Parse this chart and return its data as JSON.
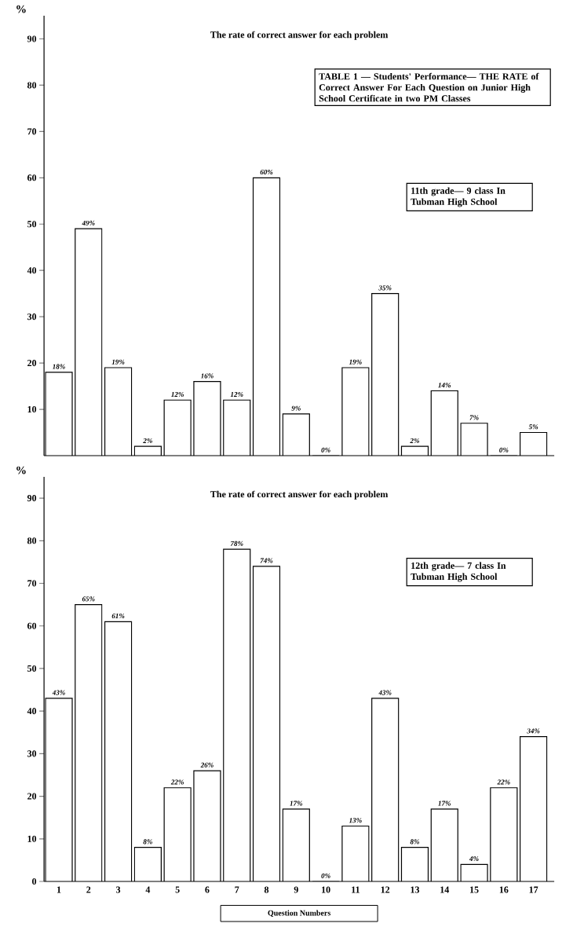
{
  "chart_data": [
    {
      "type": "bar",
      "title": "The rate of correct answer for each problem",
      "ylabel": "%",
      "categories": [
        "1",
        "2",
        "3",
        "4",
        "5",
        "6",
        "7",
        "8",
        "9",
        "10",
        "11",
        "12",
        "13",
        "14",
        "15",
        "16",
        "17"
      ],
      "values": [
        18,
        49,
        19,
        2,
        12,
        16,
        12,
        60,
        9,
        0,
        19,
        35,
        2,
        14,
        7,
        0,
        5
      ],
      "value_labels": [
        "18%",
        "49%",
        "19%",
        "2%",
        "12%",
        "16%",
        "12%",
        "60%",
        "9%",
        "0%",
        "19%",
        "35%",
        "2%",
        "14%",
        "7%",
        "0%",
        "5%"
      ],
      "color": "#ffffff",
      "ylim": [
        0,
        95
      ],
      "yticks": [
        10,
        20,
        30,
        40,
        50,
        60,
        70,
        80,
        90
      ],
      "tick_labels": "y",
      "annotations": [
        "TABLE 1 — Students' Performance— THE RATE of Correct Answer For Each Question on Junior High School Certificate in two PM Classes",
        "11th grade— 9 class In Tubman High School"
      ]
    },
    {
      "type": "bar",
      "title": "The rate of correct answer for each problem",
      "ylabel": "%",
      "xlabel": "Question Numbers",
      "categories": [
        "1",
        "2",
        "3",
        "4",
        "5",
        "6",
        "7",
        "8",
        "9",
        "10",
        "11",
        "12",
        "13",
        "14",
        "15",
        "16",
        "17"
      ],
      "values": [
        43,
        65,
        61,
        8,
        22,
        26,
        78,
        74,
        17,
        0,
        13,
        43,
        8,
        17,
        4,
        22,
        34
      ],
      "value_labels": [
        "43%",
        "65%",
        "61%",
        "8%",
        "22%",
        "26%",
        "78%",
        "74%",
        "17%",
        "0%",
        "13%",
        "43%",
        "8%",
        "17%",
        "4%",
        "22%",
        "34%"
      ],
      "color": "#ffffff",
      "ylim": [
        0,
        95
      ],
      "yticks": [
        0,
        10,
        20,
        30,
        40,
        50,
        60,
        70,
        80,
        90
      ],
      "annotations": [
        "12th grade— 7 class In Tubman High School"
      ]
    }
  ]
}
